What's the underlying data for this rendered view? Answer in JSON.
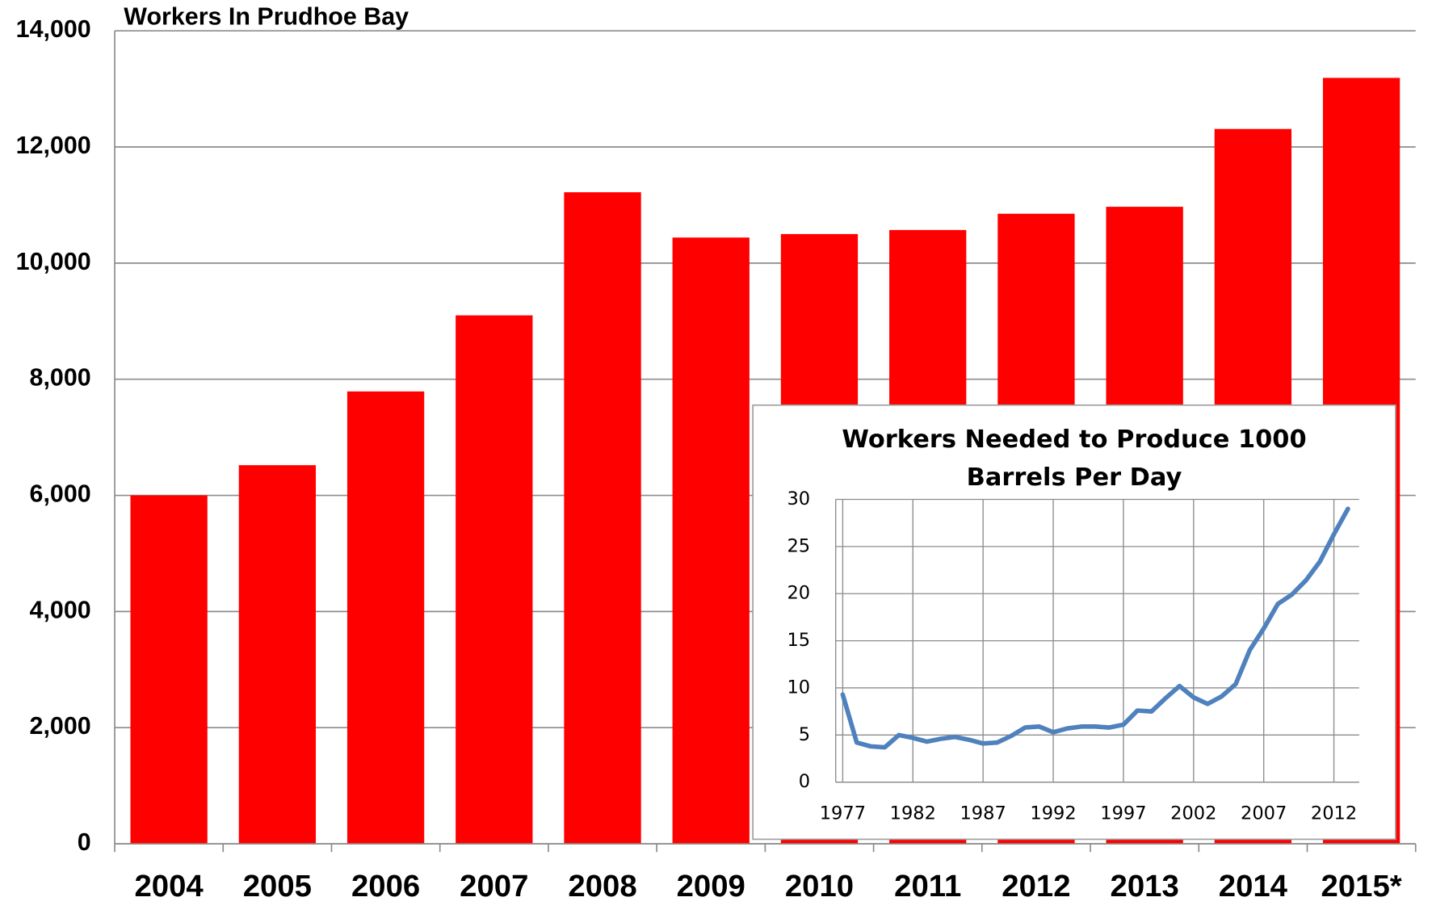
{
  "chart_data": [
    {
      "type": "bar",
      "title": "Workers In Prudhoe Bay",
      "categories": [
        "2004",
        "2005",
        "2006",
        "2007",
        "2008",
        "2009",
        "2010",
        "2011",
        "2012",
        "2013",
        "2014",
        "2015*"
      ],
      "values": [
        6000,
        6520,
        7790,
        9100,
        11220,
        10440,
        10500,
        10570,
        10850,
        10970,
        12310,
        13190
      ],
      "color": "#ff0000",
      "ylim": [
        0,
        14000
      ],
      "yticks": [
        {
          "value": 0,
          "label": "0"
        },
        {
          "value": 2000,
          "label": "2,000"
        },
        {
          "value": 4000,
          "label": "4,000"
        },
        {
          "value": 6000,
          "label": "6,000"
        },
        {
          "value": 8000,
          "label": "8,000"
        },
        {
          "value": 10000,
          "label": "10,000"
        },
        {
          "value": 12000,
          "label": "12,000"
        },
        {
          "value": 14000,
          "label": "14,000"
        }
      ],
      "grid": true
    },
    {
      "type": "line",
      "title": [
        "Workers Needed to Produce 1000",
        "Barrels Per Day"
      ],
      "x": [
        1977,
        1978,
        1979,
        1980,
        1981,
        1982,
        1983,
        1984,
        1985,
        1986,
        1987,
        1988,
        1989,
        1990,
        1991,
        1992,
        1993,
        1994,
        1995,
        1996,
        1997,
        1998,
        1999,
        2000,
        2001,
        2002,
        2003,
        2004,
        2005,
        2006,
        2007,
        2008,
        2009,
        2010,
        2011,
        2012,
        2013
      ],
      "values": [
        9.3,
        4.2,
        3.8,
        3.7,
        5.0,
        4.7,
        4.3,
        4.6,
        4.8,
        4.5,
        4.1,
        4.2,
        4.9,
        5.8,
        5.9,
        5.3,
        5.7,
        5.9,
        5.9,
        5.8,
        6.1,
        7.6,
        7.5,
        8.9,
        10.2,
        9.0,
        8.3,
        9.1,
        10.4,
        14.0,
        16.3,
        18.9,
        19.9,
        21.4,
        23.4,
        26.3,
        29.0
      ],
      "color": "#4f81bd",
      "xlim": [
        1976.5,
        2013.8
      ],
      "xticks": [
        1977,
        1982,
        1987,
        1992,
        1997,
        2002,
        2007,
        2012
      ],
      "ylim": [
        0,
        30
      ],
      "yticks": [
        0,
        5,
        10,
        15,
        20,
        25,
        30
      ],
      "grid": true
    }
  ]
}
